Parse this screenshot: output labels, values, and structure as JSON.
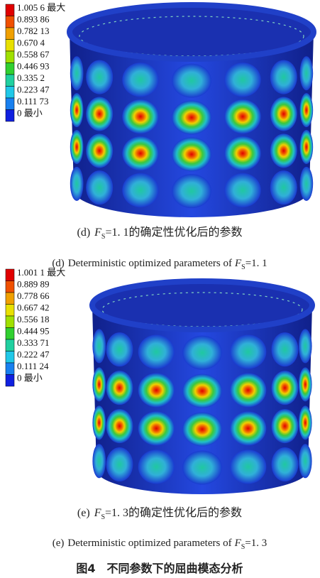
{
  "panels": [
    {
      "legend": [
        "1.005 6 最大",
        "0.893 86",
        "0.782 13",
        "0.670 4",
        "0.558 67",
        "0.446 93",
        "0.335 2",
        "0.223 47",
        "0.111 73",
        "0 最小"
      ],
      "caption_zh": {
        "label": "(d)",
        "var": "F",
        "sub": "S",
        "text": "=1. 1的确定性优化后的参数"
      },
      "caption_en": {
        "label": "(d)",
        "text": "Deterministic optimized parameters of",
        "var": "F",
        "sub": "S",
        "value": "=1. 1"
      }
    },
    {
      "legend": [
        "1.001 1 最大",
        "0.889 89",
        "0.778 66",
        "0.667 42",
        "0.556 18",
        "0.444 95",
        "0.333 71",
        "0.222 47",
        "0.111 24",
        "0 最小"
      ],
      "caption_zh": {
        "label": "(e)",
        "var": "F",
        "sub": "S",
        "text": "=1. 3的确定性优化后的参数"
      },
      "caption_en": {
        "label": "(e)",
        "text": "Deterministic optimized parameters of",
        "var": "F",
        "sub": "S",
        "value": "=1. 3"
      }
    }
  ],
  "figure_title": "图4　不同参数下的屈曲模态分析"
}
